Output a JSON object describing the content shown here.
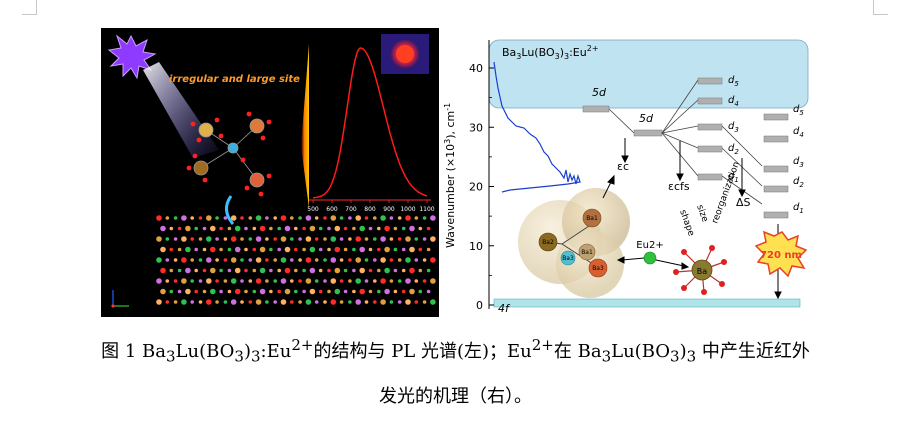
{
  "left_figure": {
    "annotation": "irregular and  large site",
    "spectrum_ticks": [
      "500",
      "600",
      "700",
      "800",
      "900",
      "1000",
      "1100"
    ],
    "spectrum_peak_nm": 750,
    "colors": {
      "background": "#000000",
      "spectrum": "#ff1a1a",
      "annotation": "#ff9a2a",
      "cone": "#ffb000"
    }
  },
  "right_figure": {
    "formula_base": "Ba",
    "formula_sub1": "3",
    "formula_mid": "Lu(BO",
    "formula_sub2": "3",
    "formula_mid2": ")",
    "formula_sub3": "3",
    "formula_tail": ":Eu",
    "formula_sup": "2+",
    "y_axis_label": "Wavenumber (×10",
    "y_axis_sup": "3",
    "y_axis_unit": "), cm",
    "y_axis_unit_sup": "-1",
    "y_ticks": [
      "0",
      "10",
      "20",
      "30",
      "40"
    ],
    "level_4f": "4f",
    "level_5d_a": "5d",
    "level_5d_b": "5d",
    "d_levels_left": [
      "d5",
      "d4",
      "d3",
      "d2",
      "d1"
    ],
    "d_levels_right": [
      "d5",
      "d4",
      "d3",
      "d2",
      "d1"
    ],
    "epsilon_c": "εc",
    "epsilon_cfs": "εcfs",
    "delta_s": "ΔS",
    "label_size": "size",
    "label_shape": "shape",
    "label_reorganization": "reorganization",
    "eu_label": "Eu2+",
    "ba_label": "Ba",
    "ba_sites": [
      "Ba1",
      "Ba2",
      "Ba3",
      "Ba1",
      "Ba3"
    ],
    "badge_text": "720 nm",
    "colors": {
      "band": "#bfe3f0",
      "ground": "#aee4ea",
      "level": "#b0b0b0",
      "curve": "#1a3fd0",
      "badge": "#e8402a"
    }
  },
  "caption": {
    "line1_prefix": "图 1 ",
    "f1_a": "Ba",
    "f1_s1": "3",
    "f1_b": "Lu(BO",
    "f1_s2": "3",
    "f1_c": ")",
    "f1_s3": "3",
    "f1_d": ":Eu",
    "f1_sup": "2+",
    "line1_mid": "的结构与 PL 光谱(左)；Eu",
    "mid_sup": "2+",
    "line1_mid2": "在 ",
    "f2_a": "Ba",
    "f2_s1": "3",
    "f2_b": "Lu(BO",
    "f2_s2": "3",
    "f2_c": ")",
    "f2_s3": "3",
    "line1_suffix": " 中产生近红外",
    "line2": "发光的机理（右）。"
  }
}
